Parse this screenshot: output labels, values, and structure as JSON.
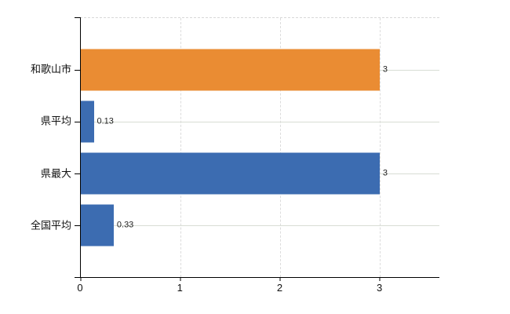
{
  "chart_data": {
    "type": "bar",
    "orientation": "horizontal",
    "title": "",
    "xlabel": "",
    "ylabel": "",
    "categories": [
      "和歌山市",
      "県平均",
      "県最大",
      "全国平均"
    ],
    "values": [
      3,
      0.13,
      3,
      0.33
    ],
    "value_labels": [
      "3",
      "0.13",
      "3",
      "0.33"
    ],
    "bar_colors": [
      "#EA8C33",
      "#3C6CB1",
      "#3C6CB1",
      "#3C6CB1"
    ],
    "xticks": [
      0,
      1,
      2,
      3
    ],
    "xlim": [
      0,
      3.6
    ],
    "grid": true,
    "legend": "none"
  },
  "styles": {
    "background": "#FFFFFF",
    "axis_color": "#000000",
    "vertical_gridline_color": "#DCDCDC",
    "horizontal_gridline_color": "#D8DDD4",
    "top_border_color": "#D8D8D8",
    "label_color": "#111111",
    "value_label_color": "#222222"
  }
}
